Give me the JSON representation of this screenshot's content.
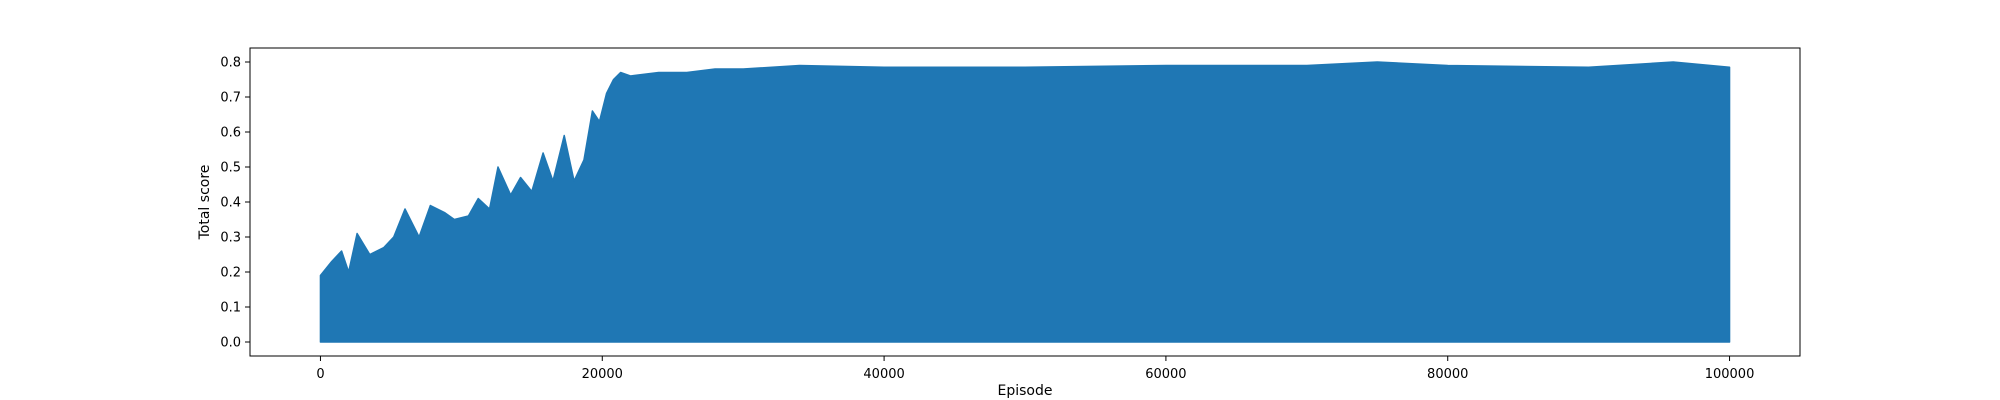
{
  "chart_data": {
    "type": "area",
    "title": "",
    "xlabel": "Episode",
    "ylabel": "Total score",
    "xlim": [
      -5000,
      105000
    ],
    "ylim": [
      -0.04,
      0.84
    ],
    "xticks": [
      0,
      20000,
      40000,
      60000,
      80000,
      100000
    ],
    "xtick_labels": [
      "0",
      "20000",
      "40000",
      "60000",
      "80000",
      "100000"
    ],
    "yticks": [
      0.0,
      0.1,
      0.2,
      0.3,
      0.4,
      0.5,
      0.6,
      0.7,
      0.8
    ],
    "ytick_labels": [
      "0.0",
      "0.1",
      "0.2",
      "0.3",
      "0.4",
      "0.5",
      "0.6",
      "0.7",
      "0.8"
    ],
    "grid": false,
    "series": [
      {
        "color": "#1f77b4",
        "x_range": [
          0,
          100000
        ],
        "lower": [
          [
            0,
            0.0
          ],
          [
            100000,
            0.0
          ]
        ],
        "upper": [
          [
            0,
            0.19
          ],
          [
            800,
            0.23
          ],
          [
            1500,
            0.26
          ],
          [
            2000,
            0.2
          ],
          [
            2600,
            0.31
          ],
          [
            3500,
            0.25
          ],
          [
            4500,
            0.27
          ],
          [
            5200,
            0.3
          ],
          [
            6000,
            0.38
          ],
          [
            7000,
            0.3
          ],
          [
            7800,
            0.39
          ],
          [
            8800,
            0.37
          ],
          [
            9500,
            0.35
          ],
          [
            10500,
            0.36
          ],
          [
            11200,
            0.41
          ],
          [
            12000,
            0.38
          ],
          [
            12600,
            0.5
          ],
          [
            13500,
            0.42
          ],
          [
            14200,
            0.47
          ],
          [
            15000,
            0.43
          ],
          [
            15800,
            0.54
          ],
          [
            16500,
            0.46
          ],
          [
            17300,
            0.59
          ],
          [
            18000,
            0.46
          ],
          [
            18700,
            0.52
          ],
          [
            19300,
            0.66
          ],
          [
            19800,
            0.63
          ],
          [
            20300,
            0.71
          ],
          [
            20800,
            0.75
          ],
          [
            21300,
            0.77
          ],
          [
            22000,
            0.76
          ],
          [
            24000,
            0.77
          ],
          [
            26000,
            0.77
          ],
          [
            28000,
            0.78
          ],
          [
            30000,
            0.78
          ],
          [
            34000,
            0.79
          ],
          [
            40000,
            0.785
          ],
          [
            50000,
            0.785
          ],
          [
            60000,
            0.79
          ],
          [
            70000,
            0.79
          ],
          [
            75000,
            0.8
          ],
          [
            80000,
            0.79
          ],
          [
            90000,
            0.785
          ],
          [
            96000,
            0.8
          ],
          [
            100000,
            0.785
          ]
        ]
      }
    ]
  }
}
